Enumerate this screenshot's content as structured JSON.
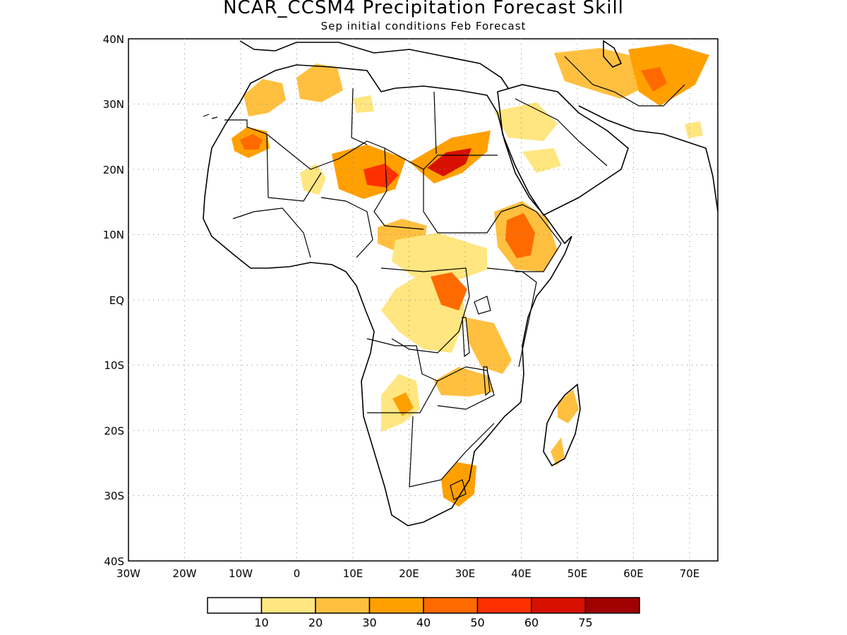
{
  "title": "NCAR_CCSM4 Precipitation Forecast Skill",
  "subtitle": "Sep initial conditions  Feb Forecast",
  "lat_labels": [
    "40N",
    "30N",
    "20N",
    "10N",
    "EQ",
    "10S",
    "20S",
    "30S",
    "40S"
  ],
  "lon_labels": [
    "30W",
    "20W",
    "10W",
    "0",
    "10E",
    "20E",
    "30E",
    "40E",
    "50E",
    "60E",
    "70E"
  ],
  "lat_range": [
    -40,
    40
  ],
  "lon_range": [
    -30,
    75
  ],
  "grid": "dotted",
  "colorbar": {
    "levels": [
      "10",
      "20",
      "30",
      "40",
      "50",
      "60",
      "75"
    ],
    "colors": [
      "#ffffff",
      "#ffe680",
      "#ffc040",
      "#ffa000",
      "#ff6a00",
      "#ff3000",
      "#d81000",
      "#a00000"
    ]
  }
}
